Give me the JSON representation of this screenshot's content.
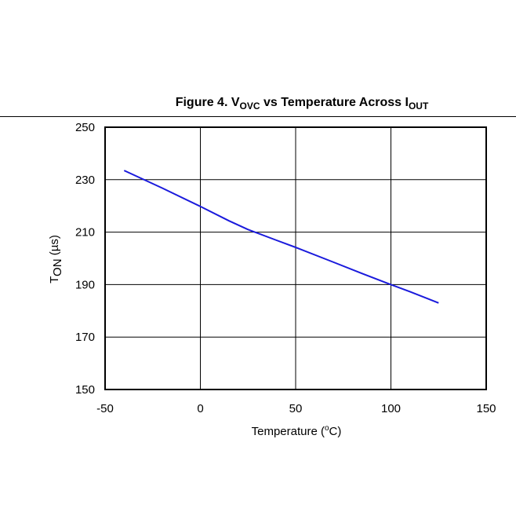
{
  "caption": {
    "prefix": "Figure 4. V",
    "sub1": "OVC",
    "middle": " vs Temperature Across I",
    "sub2": "OUT"
  },
  "chart_data": {
    "type": "line",
    "xlabel_main": "Temperature  (",
    "xlabel_sup": "o",
    "xlabel_end": "C)",
    "ylabel_main": "T",
    "ylabel_sub": "ON",
    "ylabel_end": " (µs)",
    "xlim": [
      -50,
      150
    ],
    "ylim": [
      150,
      250
    ],
    "xticks": [
      -50,
      0,
      50,
      100,
      150
    ],
    "yticks": [
      150,
      170,
      190,
      210,
      230,
      250
    ],
    "grid": true,
    "series": [
      {
        "color": "#1a1adc",
        "x": [
          -40,
          -20,
          0,
          15,
          25,
          40,
          50,
          70,
          85,
          100,
          110,
          125
        ],
        "y": [
          233.5,
          226.8,
          219.8,
          214.3,
          211.0,
          206.9,
          204.2,
          198.5,
          194.2,
          190.0,
          187.3,
          183.0
        ]
      }
    ]
  }
}
